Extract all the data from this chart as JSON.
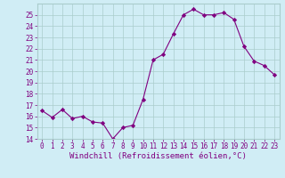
{
  "x": [
    0,
    1,
    2,
    3,
    4,
    5,
    6,
    7,
    8,
    9,
    10,
    11,
    12,
    13,
    14,
    15,
    16,
    17,
    18,
    19,
    20,
    21,
    22,
    23
  ],
  "y": [
    16.5,
    15.9,
    16.6,
    15.8,
    16.0,
    15.5,
    15.4,
    14.0,
    15.0,
    15.2,
    17.5,
    21.0,
    21.5,
    23.3,
    25.0,
    25.5,
    25.0,
    25.0,
    25.2,
    24.6,
    22.2,
    20.9,
    20.5,
    19.7
  ],
  "line_color": "#800080",
  "marker": "D",
  "marker_size": 2.2,
  "xlabel": "Windchill (Refroidissement éolien,°C)",
  "xlim": [
    -0.5,
    23.5
  ],
  "ylim": [
    14,
    26
  ],
  "yticks": [
    14,
    15,
    16,
    17,
    18,
    19,
    20,
    21,
    22,
    23,
    24,
    25
  ],
  "xticks": [
    0,
    1,
    2,
    3,
    4,
    5,
    6,
    7,
    8,
    9,
    10,
    11,
    12,
    13,
    14,
    15,
    16,
    17,
    18,
    19,
    20,
    21,
    22,
    23
  ],
  "bg_color": "#d0edf5",
  "grid_color": "#aacccc",
  "label_color": "#800080",
  "tick_fontsize": 5.5,
  "xlabel_fontsize": 6.5
}
